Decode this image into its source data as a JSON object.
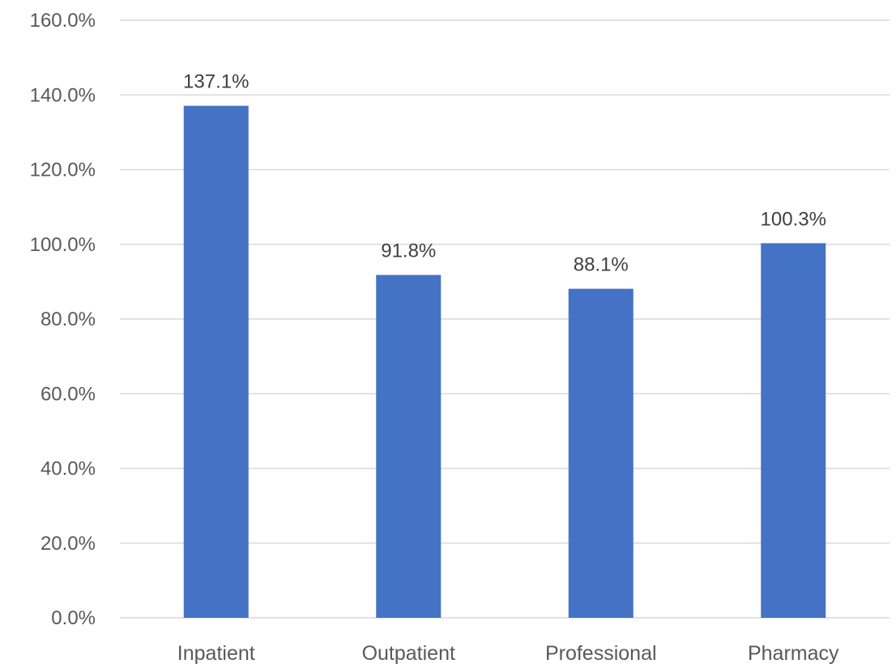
{
  "chart_data": {
    "type": "bar",
    "title": "",
    "xlabel": "",
    "ylabel": "",
    "categories": [
      "Inpatient",
      "Outpatient",
      "Professional",
      "Pharmacy"
    ],
    "values": [
      137.1,
      91.8,
      88.1,
      100.3
    ],
    "data_labels": [
      "137.1%",
      "91.8%",
      "88.1%",
      "100.3%"
    ],
    "ylim": [
      0,
      160
    ],
    "yticks": [
      0,
      20,
      40,
      60,
      80,
      100,
      120,
      140,
      160
    ],
    "ytick_labels": [
      "0.0%",
      "20.0%",
      "40.0%",
      "60.0%",
      "80.0%",
      "100.0%",
      "120.0%",
      "140.0%",
      "160.0%"
    ],
    "grid": true,
    "legend": "none",
    "bar_color": "#4472c4"
  }
}
